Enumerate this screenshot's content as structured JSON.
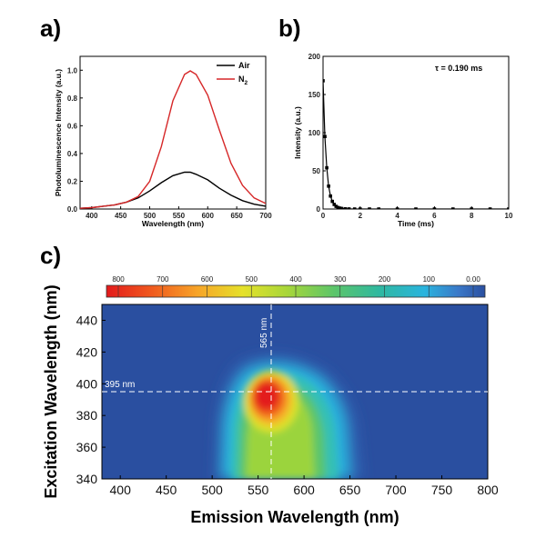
{
  "panels": {
    "a": "a)",
    "b": "b)",
    "c": "c)"
  },
  "chart_data": [
    {
      "type": "line",
      "panel": "a)",
      "xlabel": "Wavelength (nm)",
      "ylabel": "Photoluminescence Intensity (a.u.)",
      "xlim": [
        380,
        700
      ],
      "ylim": [
        0,
        1.1
      ],
      "xticks": [
        400,
        450,
        500,
        550,
        600,
        650,
        700
      ],
      "yticks": [
        0.0,
        0.2,
        0.4,
        0.6,
        0.8,
        1.0
      ],
      "legend_position": "top-right",
      "series": [
        {
          "name": "Air",
          "color": "#000000",
          "x": [
            380,
            400,
            420,
            440,
            460,
            480,
            500,
            520,
            540,
            560,
            570,
            580,
            600,
            620,
            640,
            660,
            680,
            700
          ],
          "y": [
            0.005,
            0.01,
            0.02,
            0.03,
            0.05,
            0.08,
            0.13,
            0.19,
            0.24,
            0.265,
            0.265,
            0.25,
            0.21,
            0.15,
            0.1,
            0.06,
            0.035,
            0.02
          ]
        },
        {
          "name": "N2",
          "label_main": "N",
          "label_sub": "2",
          "color": "#d62728",
          "x": [
            380,
            400,
            420,
            440,
            460,
            480,
            500,
            520,
            540,
            560,
            570,
            580,
            600,
            620,
            640,
            660,
            680,
            700
          ],
          "y": [
            0.005,
            0.01,
            0.02,
            0.03,
            0.05,
            0.09,
            0.2,
            0.45,
            0.78,
            0.97,
            0.995,
            0.97,
            0.82,
            0.57,
            0.33,
            0.17,
            0.08,
            0.04
          ]
        }
      ]
    },
    {
      "type": "line",
      "panel": "b)",
      "xlabel": "Time (ms)",
      "ylabel": "Intensity (a.u.)",
      "xlim": [
        0,
        10
      ],
      "ylim": [
        0,
        200
      ],
      "xticks": [
        0,
        2,
        4,
        6,
        8,
        10
      ],
      "yticks": [
        0,
        50,
        100,
        150,
        200
      ],
      "annotation": "τ = 0.190 ms",
      "series": [
        {
          "name": "",
          "color": "#000000",
          "marker": "square",
          "x": [
            0.0,
            0.1,
            0.2,
            0.3,
            0.4,
            0.5,
            0.6,
            0.7,
            0.8,
            0.9,
            1.0,
            1.2,
            1.4,
            1.7,
            2.0,
            2.5,
            3,
            4,
            5,
            6,
            7,
            8,
            9,
            10
          ],
          "y": [
            168,
            95,
            54,
            30,
            17,
            10,
            6,
            3.5,
            2,
            1.2,
            0.7,
            0.3,
            0.1,
            0,
            0,
            0,
            0,
            0,
            0,
            0,
            0,
            0,
            0,
            0
          ]
        }
      ]
    },
    {
      "type": "heatmap",
      "panel": "c)",
      "xlabel": "Emission Wavelength (nm)",
      "ylabel": "Excitation Wavelength (nm)",
      "xlim": [
        380,
        800
      ],
      "ylim": [
        340,
        450
      ],
      "xticks": [
        400,
        450,
        500,
        550,
        600,
        650,
        700,
        750,
        800
      ],
      "yticks": [
        340,
        360,
        380,
        400,
        420,
        440
      ],
      "colorbar": {
        "ticks": [
          "800",
          "700",
          "600",
          "500",
          "400",
          "300",
          "200",
          "100",
          "0.00"
        ],
        "colors": [
          "#e31a1c",
          "#f05a1e",
          "#f7a428",
          "#e5e12a",
          "#a6d63a",
          "#5cc56a",
          "#2fb8a0",
          "#2ab4de",
          "#3a78c8",
          "#2a4fa0"
        ]
      },
      "peak": {
        "emission": 565,
        "excitation": 395
      },
      "annotations": {
        "vertical": "565 nm",
        "horizontal": "395 nm"
      }
    }
  ]
}
